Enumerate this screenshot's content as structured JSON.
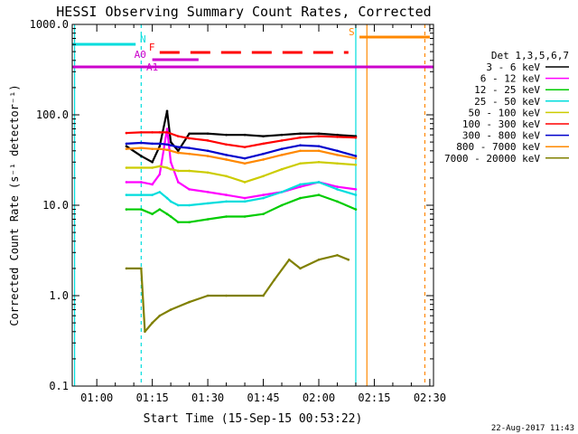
{
  "chart_data": {
    "type": "line",
    "title": "HESSI Observing Summary Count Rates, Corrected",
    "xlabel": "Start Time (15-Sep-15 00:53:22)",
    "ylabel": "Corrected Count Rate (s⁻¹ detector⁻¹)",
    "xlim": [
      "00:53:22",
      "02:31:00"
    ],
    "ylim": [
      0.1,
      1000
    ],
    "y_scale": "log",
    "x_ticks": [
      "01:00",
      "01:15",
      "01:30",
      "01:45",
      "02:00",
      "02:15",
      "02:30"
    ],
    "y_ticks": [
      "0.1",
      "1.0",
      "10.0",
      "100.0",
      "1000.0"
    ],
    "legend_title": "Det 1,3,5,6,7",
    "legend_position": "right",
    "series": [
      {
        "name": "3 - 6 keV",
        "color": "#000000",
        "x": [
          "01:08",
          "01:12",
          "01:15",
          "01:17",
          "01:19",
          "01:20",
          "01:22",
          "01:25",
          "01:30",
          "01:35",
          "01:40",
          "01:45",
          "01:50",
          "01:55",
          "02:00",
          "02:05",
          "02:10"
        ],
        "y": [
          45,
          35,
          30,
          45,
          110,
          50,
          40,
          62,
          62,
          60,
          60,
          58,
          60,
          62,
          62,
          60,
          58
        ]
      },
      {
        "name": "6 - 12 keV",
        "color": "#ff00ff",
        "x": [
          "01:08",
          "01:12",
          "01:15",
          "01:17",
          "01:19",
          "01:20",
          "01:22",
          "01:25",
          "01:30",
          "01:35",
          "01:40",
          "01:45",
          "01:50",
          "01:55",
          "02:00",
          "02:05",
          "02:10"
        ],
        "y": [
          18,
          18,
          17,
          22,
          70,
          30,
          18,
          15,
          14,
          13,
          12,
          13,
          14,
          16,
          18,
          16,
          15
        ]
      },
      {
        "name": "12 - 25 keV",
        "color": "#00cc00",
        "x": [
          "01:08",
          "01:12",
          "01:15",
          "01:17",
          "01:19",
          "01:20",
          "01:22",
          "01:25",
          "01:30",
          "01:35",
          "01:40",
          "01:45",
          "01:50",
          "01:55",
          "02:00",
          "02:05",
          "02:10"
        ],
        "y": [
          9,
          9,
          8,
          9,
          8,
          7.5,
          6.5,
          6.5,
          7,
          7.5,
          7.5,
          8,
          10,
          12,
          13,
          11,
          9
        ]
      },
      {
        "name": "25 - 50 keV",
        "color": "#00dddd",
        "x": [
          "01:08",
          "01:12",
          "01:15",
          "01:17",
          "01:19",
          "01:20",
          "01:22",
          "01:25",
          "01:30",
          "01:35",
          "01:40",
          "01:45",
          "01:50",
          "01:55",
          "02:00",
          "02:05",
          "02:10"
        ],
        "y": [
          13,
          13,
          13,
          14,
          12,
          11,
          10,
          10,
          10.5,
          11,
          11,
          12,
          14,
          17,
          18,
          15,
          13
        ]
      },
      {
        "name": "50 - 100 keV",
        "color": "#cccc00",
        "x": [
          "01:08",
          "01:12",
          "01:15",
          "01:17",
          "01:19",
          "01:20",
          "01:22",
          "01:25",
          "01:30",
          "01:35",
          "01:40",
          "01:45",
          "01:50",
          "01:55",
          "02:00",
          "02:05",
          "02:10"
        ],
        "y": [
          26,
          26,
          26,
          27,
          26,
          25,
          24,
          24,
          23,
          21,
          18,
          21,
          25,
          29,
          30,
          29,
          28
        ]
      },
      {
        "name": "100 - 300 keV",
        "color": "#ff0000",
        "x": [
          "01:08",
          "01:12",
          "01:15",
          "01:17",
          "01:19",
          "01:20",
          "01:22",
          "01:25",
          "01:30",
          "01:35",
          "01:40",
          "01:45",
          "01:50",
          "01:55",
          "02:00",
          "02:05",
          "02:10"
        ],
        "y": [
          63,
          64,
          64,
          64,
          64,
          62,
          58,
          55,
          52,
          47,
          44,
          48,
          52,
          56,
          58,
          57,
          56
        ]
      },
      {
        "name": "300 - 800 keV",
        "color": "#0000cc",
        "x": [
          "01:08",
          "01:12",
          "01:15",
          "01:17",
          "01:19",
          "01:20",
          "01:22",
          "01:25",
          "01:30",
          "01:35",
          "01:40",
          "01:45",
          "01:50",
          "01:55",
          "02:00",
          "02:05",
          "02:10"
        ],
        "y": [
          48,
          49,
          48,
          48,
          47,
          46,
          44,
          43,
          40,
          36,
          33,
          37,
          42,
          46,
          45,
          40,
          35
        ]
      },
      {
        "name": "800 - 7000 keV",
        "color": "#ff8800",
        "x": [
          "01:08",
          "01:12",
          "01:15",
          "01:17",
          "01:19",
          "01:20",
          "01:22",
          "01:25",
          "01:30",
          "01:35",
          "01:40",
          "01:45",
          "01:50",
          "01:55",
          "02:00",
          "02:05",
          "02:10"
        ],
        "y": [
          42,
          43,
          42,
          42,
          41,
          40,
          38,
          37,
          35,
          32,
          29,
          32,
          36,
          40,
          40,
          36,
          33
        ]
      },
      {
        "name": "7000 - 20000 keV",
        "color": "#808000",
        "x": [
          "01:08",
          "01:12",
          "01:13",
          "01:15",
          "01:17",
          "01:20",
          "01:25",
          "01:30",
          "01:35",
          "01:45",
          "01:48",
          "01:52",
          "01:55",
          "02:00",
          "02:05",
          "02:08"
        ],
        "y": [
          2,
          2,
          0.4,
          0.5,
          0.6,
          0.7,
          0.85,
          1.0,
          1.0,
          1.0,
          1.5,
          2.5,
          2.0,
          2.5,
          2.8,
          2.5
        ]
      }
    ],
    "annotations": [
      {
        "label": "N",
        "color": "#00dddd",
        "x_start": "00:53:22",
        "x_end": "01:10:30"
      },
      {
        "label": "F",
        "color": "#ff0000",
        "x_start": "01:17:00",
        "x_end": "02:08:00"
      },
      {
        "label": "A0",
        "color": "#cc00cc",
        "x_start": "01:15:00",
        "x_end": "01:27:30"
      },
      {
        "label": "A1",
        "color": "#cc00cc",
        "x_start": "00:53:22",
        "x_end": "02:31:00"
      },
      {
        "label": "S",
        "color": "#ff8800",
        "x_start": "02:11:00",
        "x_end": "02:30:00"
      }
    ],
    "timestamp": "22-Aug-2017 11:43"
  }
}
